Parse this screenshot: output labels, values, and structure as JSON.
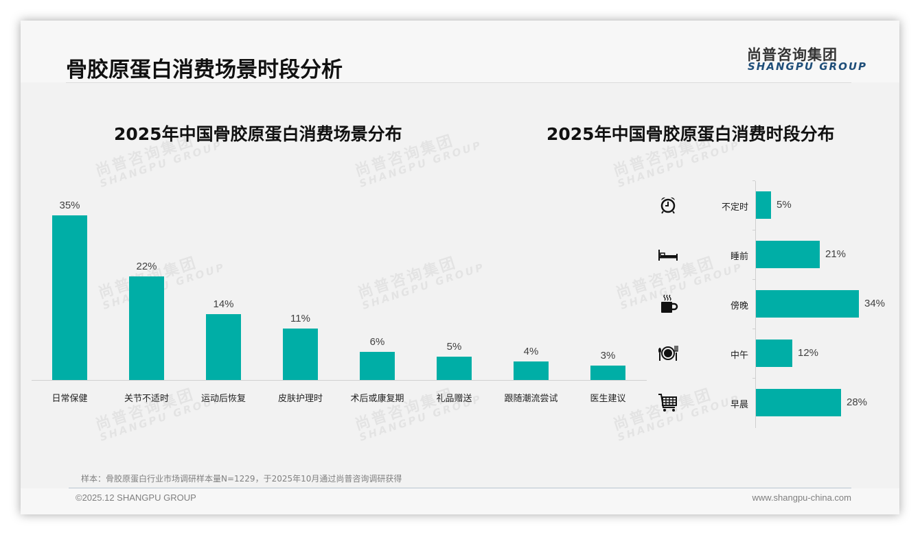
{
  "header": {
    "title": "骨胶原蛋白消费场景时段分析",
    "logo_cn": "尚普咨询集团",
    "logo_en": "SHANGPU GROUP"
  },
  "watermark": {
    "cn": "尚普咨询集团",
    "en": "SHANGPU GROUP"
  },
  "colors": {
    "bar": "#00aea6",
    "title": "#111111",
    "logo_en": "#1f4e79",
    "background": "#f2f2f2"
  },
  "chart_data": [
    {
      "type": "bar",
      "title": "2025年中国骨胶原蛋白消费场景分布",
      "categories": [
        "日常保健",
        "关节不适时",
        "运动后恢复",
        "皮肤护理时",
        "术后或康复期",
        "礼品赠送",
        "跟随潮流尝试",
        "医生建议"
      ],
      "values": [
        35,
        22,
        14,
        11,
        6,
        5,
        4,
        3
      ],
      "value_labels": [
        "35%",
        "22%",
        "14%",
        "11%",
        "6%",
        "5%",
        "4%",
        "3%"
      ],
      "unit": "%",
      "xlabel": "",
      "ylabel": "",
      "ylim": [
        0,
        35
      ],
      "grid": false,
      "legend": "none",
      "orientation": "vertical"
    },
    {
      "type": "bar",
      "title": "2025年中国骨胶原蛋白消费时段分布",
      "categories": [
        "不定时",
        "睡前",
        "傍晚",
        "中午",
        "早晨"
      ],
      "values": [
        5,
        21,
        34,
        12,
        28
      ],
      "value_labels": [
        "5%",
        "21%",
        "34%",
        "12%",
        "28%"
      ],
      "icons": [
        "alarm-clock-icon",
        "bed-icon",
        "hot-coffee-mug-icon",
        "plate-fork-knife-icon",
        "shopping-cart-icon"
      ],
      "unit": "%",
      "xlabel": "",
      "ylabel": "",
      "xlim": [
        0,
        34
      ],
      "grid": false,
      "legend": "none",
      "orientation": "horizontal"
    }
  ],
  "footer": {
    "note": "样本：骨胶原蛋白行业市场调研样本量N=1229，于2025年10月通过尚普咨询调研获得",
    "copyright": "©2025.12 SHANGPU GROUP",
    "website": "www.shangpu-china.com"
  }
}
